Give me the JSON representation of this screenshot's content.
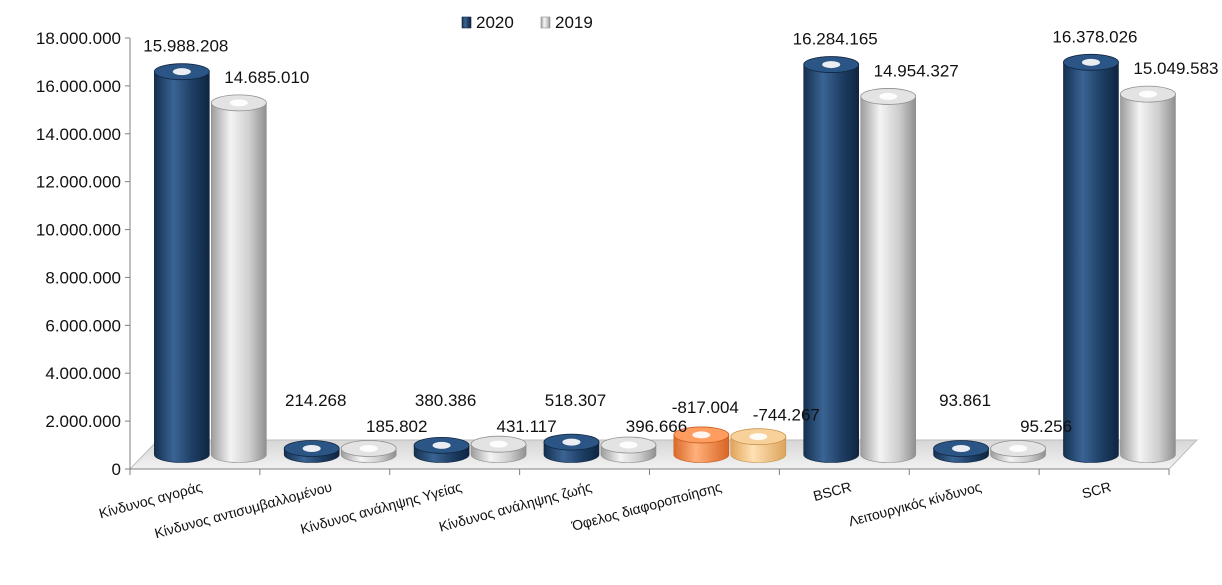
{
  "chart_data": {
    "type": "bar",
    "categories": [
      "Κίνδυνος αγοράς",
      "Κίνδυνος αντισυμβαλλομένου",
      "Κίνδυνος ανάληψης Υγείας",
      "Κίνδυνος ανάληψης ζωής",
      "Όφελος διαφοροποίησης",
      "BSCR",
      "Λειτουργικός κίνδυνος",
      "SCR"
    ],
    "series": [
      {
        "name": "2020",
        "values": [
          15988208,
          214268,
          380386,
          518307,
          -817004,
          16284165,
          93861,
          16378026
        ],
        "labels": [
          "15.988.208",
          "214.268",
          "380.386",
          "518.307",
          "-817.004",
          "16.284.165",
          "93.861",
          "16.378.026"
        ]
      },
      {
        "name": "2019",
        "values": [
          14685010,
          185802,
          431117,
          396666,
          -744267,
          14954327,
          95256,
          15049583
        ],
        "labels": [
          "14.685.010",
          "185.802",
          "431.117",
          "396.666",
          "-744.267",
          "14.954.327",
          "95.256",
          "15.049.583"
        ]
      }
    ],
    "ylim": [
      0,
      18000000
    ],
    "y_ticks": [
      "0",
      "2.000.000",
      "4.000.000",
      "6.000.000",
      "8.000.000",
      "10.000.000",
      "12.000.000",
      "14.000.000",
      "16.000.000",
      "18.000.000"
    ],
    "legend_position": "top-center",
    "grid": false,
    "colors": {
      "2020": "#1f3f66",
      "2019": "#c4c4c4",
      "negative_2020": "#f08a4b",
      "negative_2019": "#f5c68a",
      "floor": "#e6e6e6"
    }
  }
}
